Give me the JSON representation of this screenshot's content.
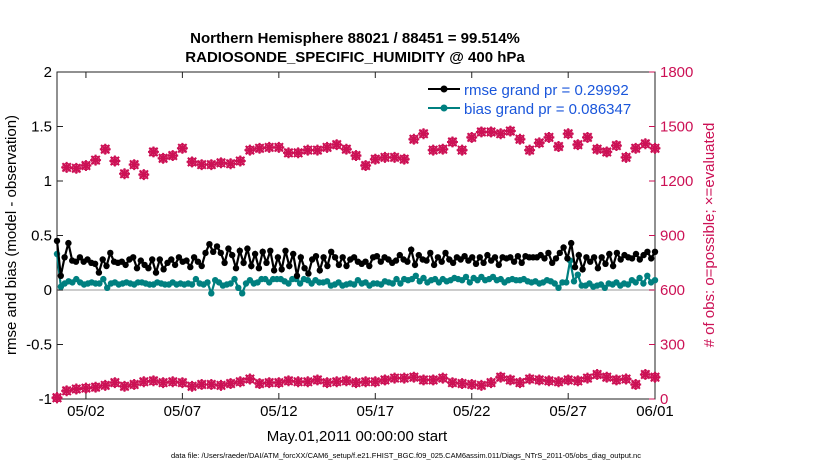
{
  "chart_data": {
    "type": "line",
    "title": "Northern Hemisphere 88021 / 88451 = 99.514%",
    "subtitle": "RADIOSONDE_SPECIFIC_HUMIDITY @ 400 hPa",
    "xlabel": "May.01,2011 00:00:00 start",
    "ylabel": "rmse and bias (model - observation)",
    "y2label": "# of obs: o=possible; ×=evaluated",
    "footnote": "data file: /Users/raeder/DAI/ATM_forcXX/CAM6_setup/f.e21.FHIST_BGC.f09_025.CAM6assim.011/Diags_NTrS_2011-05/obs_diag_output.nc",
    "xlim": [
      0.5,
      31.5
    ],
    "ylim": [
      -1,
      2
    ],
    "y2lim": [
      0,
      1800
    ],
    "x_ticks": [
      2,
      7,
      12,
      17,
      22,
      27,
      32
    ],
    "x_tick_labels": [
      "05/02",
      "05/07",
      "05/12",
      "05/17",
      "05/22",
      "05/27",
      "06/01"
    ],
    "y_ticks": [
      -1,
      -0.5,
      0,
      0.5,
      1,
      1.5,
      2
    ],
    "y_tick_labels": [
      "-1",
      "-0.5",
      "0",
      "0.5",
      "1",
      "1.5",
      "2"
    ],
    "y2_ticks": [
      0,
      300,
      600,
      900,
      1200,
      1500,
      1800
    ],
    "y2_tick_labels": [
      "0",
      "300",
      "600",
      "900",
      "1200",
      "1500",
      "1800"
    ],
    "legend": {
      "placement": "top-right"
    },
    "series": [
      {
        "name": "rmse grand pr = 0.29992",
        "color": "#000000",
        "axis": "left",
        "values": [
          0.45,
          0.13,
          0.3,
          0.43,
          0.27,
          0.26,
          0.3,
          0.26,
          0.28,
          0.25,
          0.24,
          0.16,
          0.28,
          0.22,
          0.34,
          0.26,
          0.25,
          0.26,
          0.23,
          0.28,
          0.3,
          0.2,
          0.27,
          0.23,
          0.2,
          0.28,
          0.16,
          0.28,
          0.19,
          0.25,
          0.28,
          0.23,
          0.3,
          0.26,
          0.27,
          0.21,
          0.3,
          0.26,
          0.22,
          0.34,
          0.42,
          0.35,
          0.4,
          0.34,
          0.25,
          0.38,
          0.32,
          0.2,
          0.36,
          0.25,
          0.38,
          0.22,
          0.33,
          0.2,
          0.35,
          0.25,
          0.36,
          0.18,
          0.3,
          0.19,
          0.36,
          0.22,
          0.33,
          0.13,
          0.3,
          0.2,
          0.15,
          0.28,
          0.31,
          0.18,
          0.3,
          0.22,
          0.35,
          0.3,
          0.23,
          0.3,
          0.22,
          0.28,
          0.3,
          0.26,
          0.24,
          0.26,
          0.22,
          0.3,
          0.31,
          0.26,
          0.3,
          0.28,
          0.25,
          0.27,
          0.32,
          0.28,
          0.26,
          0.37,
          0.23,
          0.32,
          0.28,
          0.27,
          0.34,
          0.23,
          0.3,
          0.26,
          0.34,
          0.28,
          0.25,
          0.3,
          0.28,
          0.31,
          0.27,
          0.3,
          0.24,
          0.3,
          0.25,
          0.32,
          0.27,
          0.3,
          0.23,
          0.3,
          0.29,
          0.3,
          0.26,
          0.31,
          0.25,
          0.31,
          0.3,
          0.3,
          0.3,
          0.32,
          0.29,
          0.34,
          0.25,
          0.29,
          0.34,
          0.39,
          0.29,
          0.43,
          0.21,
          0.32,
          0.19,
          0.3,
          0.26,
          0.3,
          0.2,
          0.3,
          0.24,
          0.33,
          0.22,
          0.34,
          0.28,
          0.32,
          0.3,
          0.29,
          0.33,
          0.28,
          0.32,
          0.35,
          0.29,
          0.35
        ]
      },
      {
        "name": "bias grand pr = 0.086347",
        "color": "#008080",
        "axis": "left",
        "values": [
          0.33,
          0.03,
          0.06,
          0.08,
          0.07,
          0.1,
          0.07,
          0.05,
          0.06,
          0.07,
          0.06,
          0.06,
          0.1,
          0.02,
          0.06,
          0.07,
          0.05,
          0.06,
          0.07,
          0.06,
          0.05,
          0.07,
          0.07,
          0.06,
          0.05,
          0.05,
          0.07,
          0.06,
          0.05,
          0.05,
          0.07,
          0.05,
          0.06,
          0.05,
          0.06,
          0.05,
          0.1,
          0.06,
          0.05,
          0.07,
          -0.03,
          0.09,
          0.07,
          0.04,
          0.05,
          0.06,
          0.1,
          0.02,
          -0.03,
          0.06,
          0.09,
          0.06,
          0.07,
          0.1,
          0.1,
          0.07,
          0.1,
          0.1,
          0.1,
          0.08,
          0.06,
          0.1,
          0.1,
          0.06,
          0.1,
          0.09,
          0.06,
          0.09,
          0.07,
          0.07,
          0.08,
          0.04,
          0.05,
          0.07,
          0.04,
          0.05,
          0.06,
          0.05,
          0.09,
          0.06,
          0.07,
          0.04,
          0.06,
          0.06,
          0.05,
          0.08,
          0.07,
          0.06,
          0.1,
          0.06,
          0.1,
          0.09,
          0.1,
          0.13,
          0.08,
          0.11,
          0.07,
          0.09,
          0.1,
          0.07,
          0.1,
          0.08,
          0.09,
          0.11,
          0.1,
          0.09,
          0.12,
          0.07,
          0.11,
          0.09,
          0.12,
          0.09,
          0.1,
          0.12,
          0.09,
          0.1,
          0.07,
          0.09,
          0.1,
          0.09,
          0.09,
          0.1,
          0.08,
          0.07,
          0.08,
          0.06,
          0.07,
          0.09,
          0.08,
          0.06,
          0.02,
          0.07,
          0.07,
          0.27,
          0.08,
          0.14,
          0.04,
          0.04,
          0.06,
          0.03,
          0.04,
          0.05,
          0.02,
          0.06,
          0.05,
          0.07,
          0.04,
          0.06,
          0.05,
          0.09,
          0.07,
          0.11,
          0.06,
          0.13,
          0.07,
          0.09
        ]
      }
    ],
    "obs_counts": {
      "name": "# of obs",
      "color": "#cc1155",
      "axis": "right",
      "x": [
        0.5,
        1,
        1.5,
        2,
        2.5,
        3,
        3.5,
        4,
        4.5,
        5,
        5.5,
        6,
        6.5,
        7,
        7.5,
        8,
        8.5,
        9,
        9.5,
        10,
        10.5,
        11,
        11.5,
        12,
        12.5,
        13,
        13.5,
        14,
        14.5,
        15,
        15.5,
        16,
        16.5,
        17,
        17.5,
        18,
        18.5,
        19,
        19.5,
        20,
        20.5,
        21,
        21.5,
        22,
        22.5,
        23,
        23.5,
        24,
        24.5,
        25,
        25.5,
        26,
        26.5,
        27,
        27.5,
        28,
        28.5,
        29,
        29.5,
        30,
        30.5,
        31,
        31.5
      ],
      "possible": [
        7,
        1275,
        1270,
        1285,
        1315,
        1375,
        1310,
        1240,
        1290,
        1235,
        1360,
        1325,
        1340,
        1380,
        1305,
        1290,
        1290,
        1300,
        1295,
        1310,
        1370,
        1380,
        1385,
        1385,
        1355,
        1355,
        1370,
        1370,
        1385,
        1400,
        1375,
        1340,
        1285,
        1320,
        1330,
        1330,
        1320,
        1430,
        1460,
        1370,
        1375,
        1415,
        1370,
        1440,
        1470,
        1470,
        1460,
        1475,
        1430,
        1370,
        1410,
        1440,
        1390,
        1460,
        1400,
        1440,
        1375,
        1360,
        1395,
        1330,
        1380,
        1405,
        1380
      ],
      "evaluated": [
        7,
        45,
        55,
        60,
        65,
        75,
        90,
        70,
        80,
        95,
        100,
        90,
        95,
        90,
        70,
        80,
        80,
        75,
        85,
        95,
        110,
        85,
        90,
        90,
        100,
        95,
        95,
        105,
        90,
        95,
        100,
        90,
        95,
        95,
        105,
        115,
        115,
        120,
        105,
        105,
        115,
        90,
        85,
        80,
        75,
        90,
        120,
        105,
        90,
        110,
        105,
        100,
        95,
        105,
        100,
        115,
        135,
        120,
        105,
        110,
        80,
        135,
        120
      ]
    }
  }
}
